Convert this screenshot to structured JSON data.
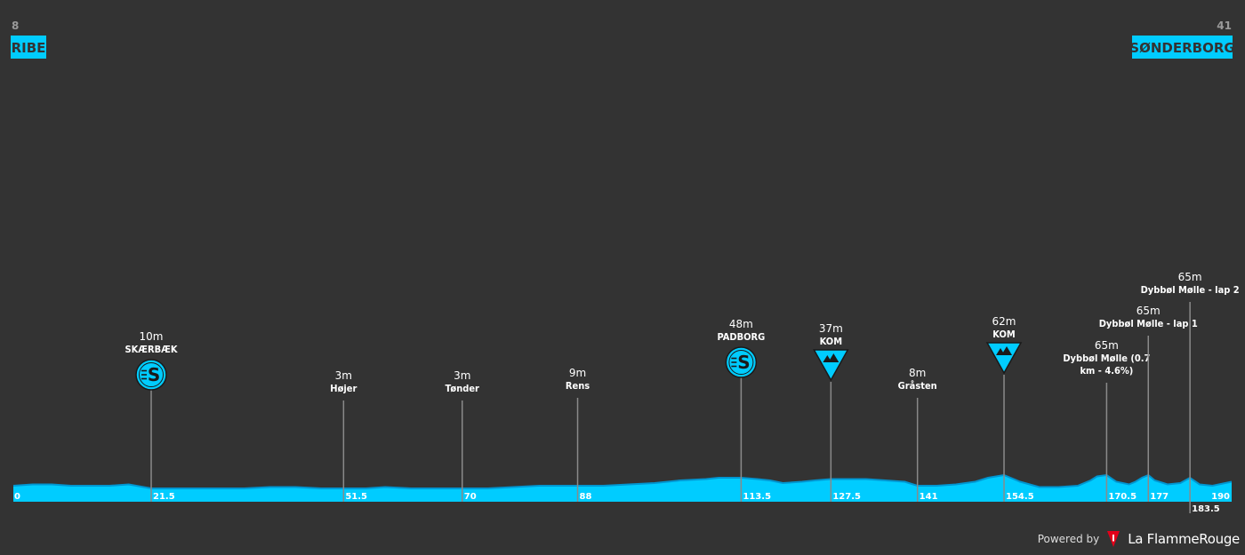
{
  "chart_data": {
    "type": "area",
    "start": {
      "km_label": "8",
      "name": "RIBE"
    },
    "finish": {
      "km_label": "41",
      "name": "SØNDERBORG"
    },
    "xlim": [
      0,
      190
    ],
    "ylim": [
      0,
      80
    ],
    "x_tick_labels": [
      "0",
      "21.5",
      "51.5",
      "70",
      "88",
      "113.5",
      "127.5",
      "141",
      "154.5",
      "170.5",
      "177",
      "183.5",
      "190"
    ],
    "profile": {
      "x": [
        0,
        3,
        6,
        9,
        12,
        15,
        18,
        21.5,
        24,
        28,
        32,
        36,
        40,
        44,
        48,
        51.5,
        55,
        58,
        62,
        66,
        70,
        74,
        78,
        82,
        86,
        88,
        92,
        96,
        100,
        104,
        108,
        110,
        113.5,
        116,
        118,
        120,
        123,
        125,
        127.5,
        130,
        133,
        136,
        139,
        141,
        144,
        147,
        150,
        152,
        154.5,
        157,
        160,
        163,
        166,
        168,
        169,
        170.5,
        172,
        174,
        175,
        176,
        177,
        178,
        180,
        182,
        183.5,
        185,
        187,
        190
      ],
      "y": [
        12,
        13,
        13,
        12,
        12,
        12,
        13,
        10,
        10,
        10,
        10,
        10,
        11,
        11,
        10,
        10,
        10,
        11,
        10,
        10,
        10,
        10,
        11,
        12,
        12,
        12,
        12,
        13,
        14,
        16,
        17,
        18,
        18,
        17,
        16,
        14,
        15,
        16,
        17,
        17,
        17,
        16,
        15,
        12,
        12,
        13,
        15,
        18,
        20,
        15,
        11,
        11,
        12,
        16,
        19,
        20,
        15,
        13,
        15,
        18,
        20,
        16,
        13,
        14,
        18,
        13,
        12,
        15
      ]
    },
    "points": [
      {
        "km": 21.5,
        "elevation": "10m",
        "name": "SKÆRBÆK",
        "icon": "sprint"
      },
      {
        "km": 51.5,
        "elevation": "3m",
        "name": "Højer",
        "icon": "none"
      },
      {
        "km": 70,
        "elevation": "3m",
        "name": "Tønder",
        "icon": "none"
      },
      {
        "km": 88,
        "elevation": "9m",
        "name": "Rens",
        "icon": "none"
      },
      {
        "km": 113.5,
        "elevation": "48m",
        "name": "PADBORG",
        "icon": "sprint"
      },
      {
        "km": 127.5,
        "elevation": "37m",
        "name": "KOM",
        "icon": "kom"
      },
      {
        "km": 141,
        "elevation": "8m",
        "name": "Gråsten",
        "icon": "none"
      },
      {
        "km": 154.5,
        "elevation": "62m",
        "name": "KOM",
        "icon": "kom"
      },
      {
        "km": 170.5,
        "elevation": "65m",
        "name": "Dybbøl Mølle (0.7 km - 4.6%)",
        "icon": "none"
      },
      {
        "km": 177,
        "elevation": "65m",
        "name": "Dybbøl Mølle - lap 1",
        "icon": "none"
      },
      {
        "km": 183.5,
        "elevation": "65m",
        "name": "Dybbøl Mølle - lap 2",
        "icon": "none"
      }
    ],
    "colors": {
      "profile": "#00CCFF",
      "profile_dark": "#0096D1",
      "background": "#333333",
      "marker_line": "#8a8a8a"
    }
  },
  "footer": {
    "powered_by": "Powered by",
    "brand": "La FlammeRouge",
    "brand_icon": "flame-rouge-logo-icon"
  }
}
